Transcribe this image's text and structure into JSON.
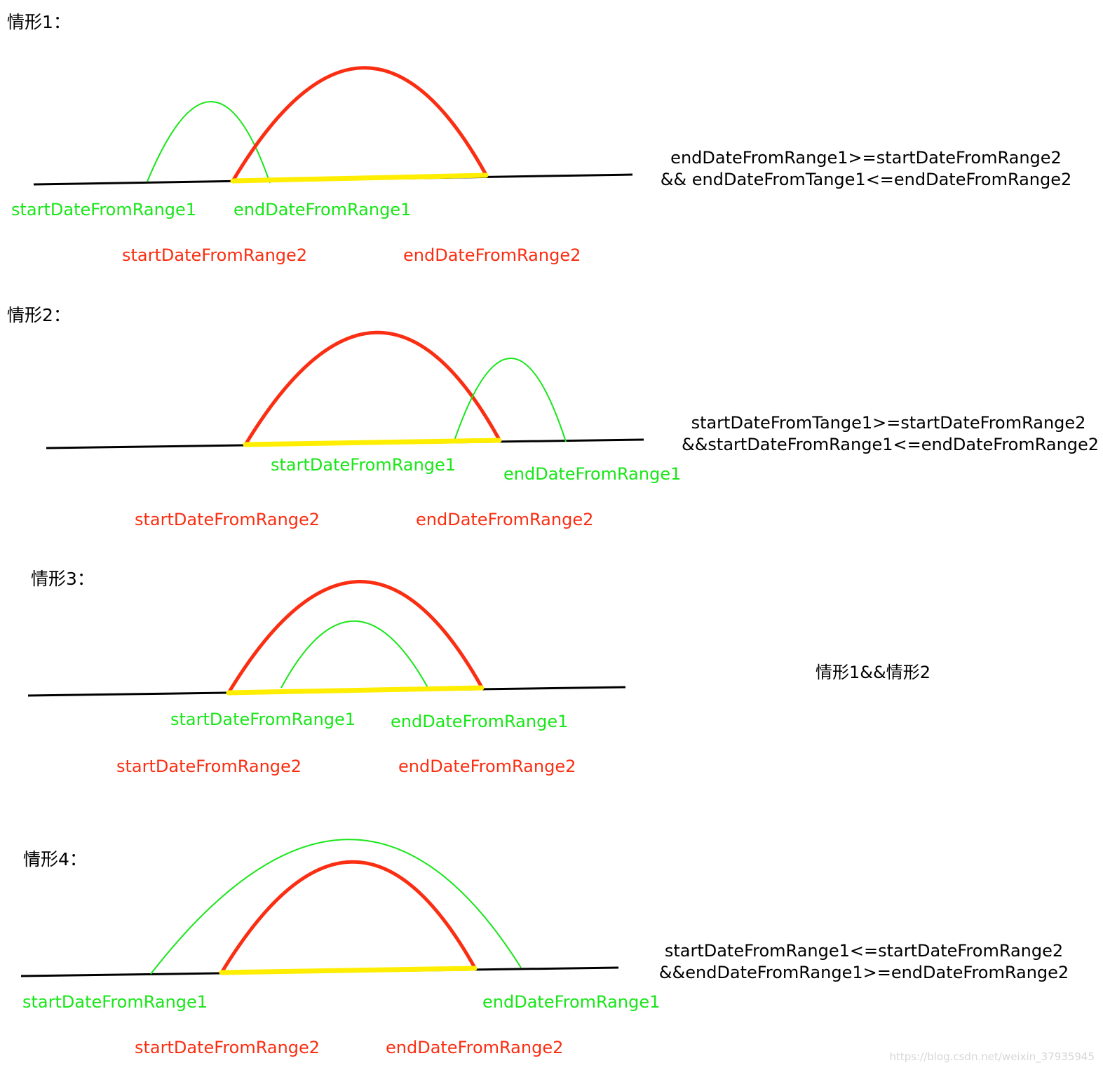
{
  "cases": [
    {
      "title": "情形1：",
      "green_start": "startDateFromRange1",
      "green_end": "endDateFromRange1",
      "red_start": "startDateFromRange2",
      "red_end": "endDateFromRange2",
      "condition_lines": [
        "endDateFromRange1>=startDateFromRange2",
        "&& endDateFromTange1<=endDateFromRange2"
      ]
    },
    {
      "title": "情形2：",
      "green_start": "startDateFromRange1",
      "green_end": "endDateFromRange1",
      "red_start": "startDateFromRange2",
      "red_end": "endDateFromRange2",
      "condition_lines": [
        "startDateFromTange1>=startDateFromRange2",
        "&&startDateFromRange1<=endDateFromRange2"
      ]
    },
    {
      "title": "情形3：",
      "green_start": "startDateFromRange1",
      "green_end": "endDateFromRange1",
      "red_start": "startDateFromRange2",
      "red_end": "endDateFromRange2",
      "condition_lines": [
        "情形1&&情形2"
      ]
    },
    {
      "title": "情形4：",
      "green_start": "startDateFromRange1",
      "green_end": "endDateFromRange1",
      "red_start": "startDateFromRange2",
      "red_end": "endDateFromRange2",
      "condition_lines": [
        "startDateFromRange1<=startDateFromRange2",
        "&&endDateFromRange1>=endDateFromRange2"
      ]
    }
  ],
  "colors": {
    "range1": "#19e619",
    "range2": "#fa2e12",
    "overlap": "#ffee00",
    "axis": "#000000"
  },
  "watermark": "https://blog.csdn.net/weixin_37935945"
}
